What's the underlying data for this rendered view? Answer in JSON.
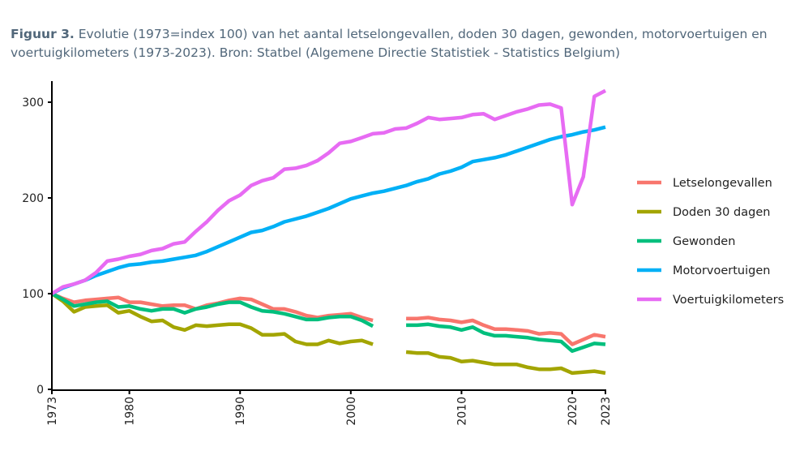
{
  "figure": {
    "label": "Figuur 3.",
    "caption": "Evolutie (1973=index 100) van het aantal letselongevallen, doden 30 dagen, gewonden, motorvoertuigen en voertuigkilometers (1973-2023). Bron: Statbel (Algemene Directie Statistiek - Statistics Belgium)"
  },
  "chart_data": {
    "type": "line",
    "title": "",
    "xlabel": "",
    "ylabel": "",
    "xlim": [
      1973,
      2023
    ],
    "ylim": [
      0,
      320
    ],
    "yticks": [
      0,
      100,
      200,
      300
    ],
    "xticks": [
      1973,
      1980,
      1990,
      2000,
      2010,
      2020,
      2023
    ],
    "grid": false,
    "legend_position": "right",
    "series": [
      {
        "name": "Letselongevallen",
        "color": "#f8766d",
        "x": [
          1973,
          1974,
          1975,
          1976,
          1977,
          1978,
          1979,
          1980,
          1981,
          1982,
          1983,
          1984,
          1985,
          1986,
          1987,
          1988,
          1989,
          1990,
          1991,
          1992,
          1993,
          1994,
          1995,
          1996,
          1997,
          1998,
          1999,
          2000,
          2001,
          2002,
          2003,
          2004,
          2005,
          2006,
          2007,
          2008,
          2009,
          2010,
          2011,
          2012,
          2013,
          2014,
          2015,
          2016,
          2017,
          2018,
          2019,
          2020,
          2021,
          2022,
          2023
        ],
        "values": [
          100,
          95,
          91,
          93,
          94,
          95,
          96,
          91,
          91,
          89,
          87,
          88,
          88,
          84,
          88,
          90,
          93,
          95,
          94,
          89,
          84,
          84,
          81,
          77,
          75,
          77,
          78,
          79,
          75,
          72,
          null,
          null,
          74,
          74,
          75,
          73,
          72,
          70,
          72,
          67,
          63,
          63,
          62,
          61,
          58,
          59,
          58,
          47,
          52,
          57,
          55
        ]
      },
      {
        "name": "Doden 30 dagen",
        "color": "#a3a500",
        "x": [
          1973,
          1974,
          1975,
          1976,
          1977,
          1978,
          1979,
          1980,
          1981,
          1982,
          1983,
          1984,
          1985,
          1986,
          1987,
          1988,
          1989,
          1990,
          1991,
          1992,
          1993,
          1994,
          1995,
          1996,
          1997,
          1998,
          1999,
          2000,
          2001,
          2002,
          2003,
          2004,
          2005,
          2006,
          2007,
          2008,
          2009,
          2010,
          2011,
          2012,
          2013,
          2014,
          2015,
          2016,
          2017,
          2018,
          2019,
          2020,
          2021,
          2022,
          2023
        ],
        "values": [
          100,
          92,
          81,
          86,
          87,
          88,
          80,
          82,
          76,
          71,
          72,
          65,
          62,
          67,
          66,
          67,
          68,
          68,
          64,
          57,
          57,
          58,
          50,
          47,
          47,
          51,
          48,
          50,
          51,
          47,
          null,
          null,
          39,
          38,
          38,
          34,
          33,
          29,
          30,
          28,
          26,
          26,
          26,
          23,
          21,
          21,
          22,
          17,
          18,
          19,
          17
        ]
      },
      {
        "name": "Gewonden",
        "color": "#00bf7d",
        "x": [
          1973,
          1974,
          1975,
          1976,
          1977,
          1978,
          1979,
          1980,
          1981,
          1982,
          1983,
          1984,
          1985,
          1986,
          1987,
          1988,
          1989,
          1990,
          1991,
          1992,
          1993,
          1994,
          1995,
          1996,
          1997,
          1998,
          1999,
          2000,
          2001,
          2002,
          2003,
          2004,
          2005,
          2006,
          2007,
          2008,
          2009,
          2010,
          2011,
          2012,
          2013,
          2014,
          2015,
          2016,
          2017,
          2018,
          2019,
          2020,
          2021,
          2022,
          2023
        ],
        "values": [
          100,
          94,
          87,
          89,
          91,
          92,
          86,
          87,
          84,
          82,
          84,
          84,
          80,
          84,
          86,
          89,
          91,
          91,
          86,
          82,
          81,
          79,
          76,
          73,
          73,
          75,
          76,
          76,
          72,
          66,
          null,
          null,
          67,
          67,
          68,
          66,
          65,
          62,
          65,
          59,
          56,
          56,
          55,
          54,
          52,
          51,
          50,
          40,
          44,
          48,
          47
        ]
      },
      {
        "name": "Motorvoertuigen",
        "color": "#00b0f6",
        "x": [
          1973,
          1974,
          1975,
          1976,
          1977,
          1978,
          1979,
          1980,
          1981,
          1982,
          1983,
          1984,
          1985,
          1986,
          1987,
          1988,
          1989,
          1990,
          1991,
          1992,
          1993,
          1994,
          1995,
          1996,
          1997,
          1998,
          1999,
          2000,
          2001,
          2002,
          2003,
          2004,
          2005,
          2006,
          2007,
          2008,
          2009,
          2010,
          2011,
          2012,
          2013,
          2014,
          2015,
          2016,
          2017,
          2018,
          2019,
          2020,
          2021,
          2022,
          2023
        ],
        "values": [
          100,
          106,
          110,
          114,
          119,
          123,
          127,
          130,
          131,
          133,
          134,
          136,
          138,
          140,
          144,
          149,
          154,
          159,
          164,
          166,
          170,
          175,
          178,
          181,
          185,
          189,
          194,
          199,
          202,
          205,
          207,
          210,
          213,
          217,
          220,
          225,
          228,
          232,
          238,
          240,
          242,
          245,
          249,
          253,
          257,
          261,
          264,
          266,
          269,
          271,
          274
        ]
      },
      {
        "name": "Voertuigkilometers",
        "color": "#e76bf3",
        "x": [
          1973,
          1974,
          1975,
          1976,
          1977,
          1978,
          1979,
          1980,
          1981,
          1982,
          1983,
          1984,
          1985,
          1986,
          1987,
          1988,
          1989,
          1990,
          1991,
          1992,
          1993,
          1994,
          1995,
          1996,
          1997,
          1998,
          1999,
          2000,
          2001,
          2002,
          2003,
          2004,
          2005,
          2006,
          2007,
          2008,
          2009,
          2010,
          2011,
          2012,
          2013,
          2014,
          2015,
          2016,
          2017,
          2018,
          2019,
          2020,
          2021,
          2022,
          2023
        ],
        "values": [
          100,
          107,
          110,
          114,
          122,
          134,
          136,
          139,
          141,
          145,
          147,
          152,
          154,
          165,
          175,
          187,
          197,
          203,
          213,
          218,
          221,
          230,
          231,
          234,
          239,
          247,
          257,
          259,
          263,
          267,
          268,
          272,
          273,
          278,
          284,
          282,
          283,
          284,
          287,
          288,
          282,
          286,
          290,
          293,
          297,
          298,
          294,
          193,
          222,
          306,
          312
        ]
      }
    ]
  }
}
